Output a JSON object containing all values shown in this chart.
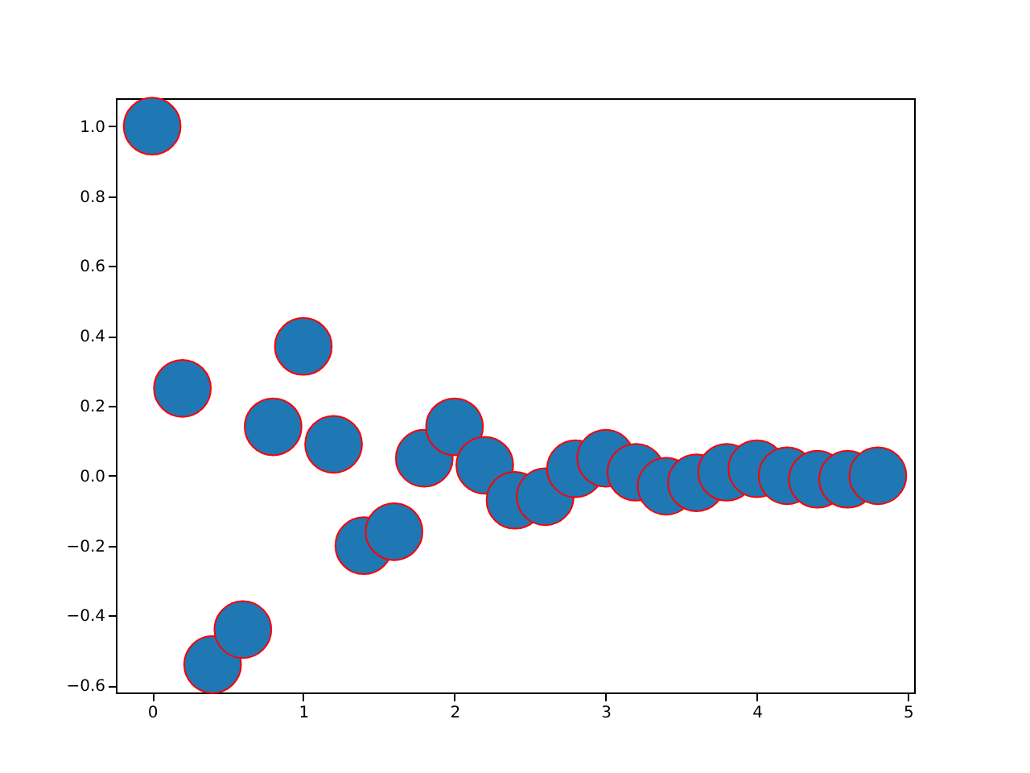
{
  "chart_data": {
    "type": "scatter",
    "x": [
      0,
      0.2,
      0.4,
      0.6,
      0.8,
      1.0,
      1.2,
      1.4,
      1.6,
      1.8,
      2.0,
      2.2,
      2.4,
      2.6,
      2.8,
      3.0,
      3.2,
      3.4,
      3.6,
      3.8,
      4.0,
      4.2,
      4.4,
      4.6,
      4.8
    ],
    "series": [
      {
        "color": "#1f77b4",
        "values": [
          1.0,
          0.25,
          -0.54,
          -0.44,
          0.14,
          0.37,
          0.09,
          -0.2,
          -0.16,
          0.05,
          0.14,
          0.03,
          -0.07,
          -0.06,
          0.02,
          0.05,
          0.01,
          -0.03,
          -0.02,
          0.01,
          0.02,
          0.0,
          -0.01,
          -0.01,
          0.0
        ]
      }
    ],
    "xlim": [
      -0.24,
      5.04
    ],
    "ylim": [
      -0.62,
      1.08
    ],
    "xticks": [
      0,
      1,
      2,
      3,
      4,
      5
    ],
    "yticks": [
      {
        "value": -0.6,
        "label": "−0.6"
      },
      {
        "value": -0.4,
        "label": "−0.4"
      },
      {
        "value": -0.2,
        "label": "−0.2"
      },
      {
        "value": 0,
        "label": "0.0"
      },
      {
        "value": 0.2,
        "label": "0.2"
      },
      {
        "value": 0.4,
        "label": "0.4"
      },
      {
        "value": 0.6,
        "label": "0.6"
      },
      {
        "value": 0.8,
        "label": "0.8"
      },
      {
        "value": 1.0,
        "label": "1.0"
      }
    ],
    "marker": "circle",
    "grid": false
  }
}
